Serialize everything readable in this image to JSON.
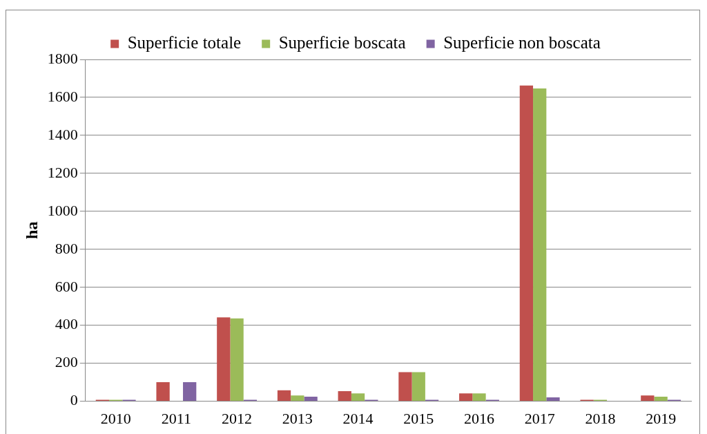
{
  "chart_data": {
    "type": "bar",
    "ylabel": "ha",
    "categories": [
      "2010",
      "2011",
      "2012",
      "2013",
      "2014",
      "2015",
      "2016",
      "2017",
      "2018",
      "2019"
    ],
    "series": [
      {
        "name": "Superficie totale",
        "color": "#c0504d",
        "values": [
          8,
          100,
          442,
          58,
          53,
          153,
          41,
          1663,
          8,
          30
        ]
      },
      {
        "name": "Superficie boscata",
        "color": "#9bbb59",
        "values": [
          8,
          0,
          436,
          30,
          41,
          153,
          41,
          1647,
          8,
          24
        ]
      },
      {
        "name": "Superficie non boscata",
        "color": "#8064a2",
        "values": [
          8,
          100,
          8,
          24,
          8,
          8,
          8,
          20,
          0,
          8
        ]
      }
    ],
    "ylim": [
      0,
      1800
    ],
    "yticks": [
      0,
      200,
      400,
      600,
      800,
      1000,
      1200,
      1400,
      1600,
      1800
    ],
    "grid": "y",
    "legend": "top"
  }
}
